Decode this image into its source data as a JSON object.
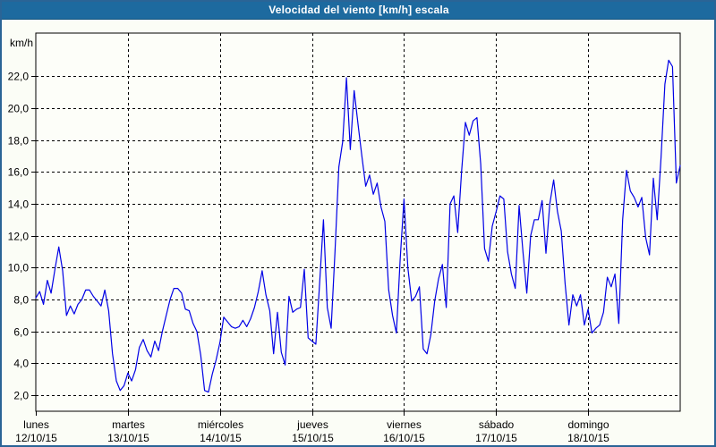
{
  "header": {
    "title": "Velocidad del viento [km/h] escala"
  },
  "colors": {
    "titlebar_bg": "#1d6a9f",
    "title_text": "#ffffff",
    "window_border": "#2a6496",
    "panel_bg": "#fbfdf6",
    "plot_bg": "#fdfef9",
    "grid": "#000000",
    "line": "#0000e6"
  },
  "chart_data": {
    "type": "line",
    "title": "Velocidad del viento [km/h] escala",
    "xlabel": "",
    "ylabel": "km/h",
    "grid": true,
    "legend": "none",
    "ylim": [
      1.0,
      24.7
    ],
    "sampling": "hourly, 24 points per day plus closing point",
    "line_color": "#0000e6",
    "y_ticks": [
      {
        "value": 22,
        "label": "22,0"
      },
      {
        "value": 20,
        "label": "20,0"
      },
      {
        "value": 18,
        "label": "18,0"
      },
      {
        "value": 16,
        "label": "16,0"
      },
      {
        "value": 14,
        "label": "14,0"
      },
      {
        "value": 12,
        "label": "12,0"
      },
      {
        "value": 10,
        "label": "10,0"
      },
      {
        "value": 8,
        "label": "8,0"
      },
      {
        "value": 6,
        "label": "6,0"
      },
      {
        "value": 4,
        "label": "4,0"
      },
      {
        "value": 2,
        "label": "2,0"
      }
    ],
    "days": [
      {
        "name": "lunes",
        "date": "12/10/15"
      },
      {
        "name": "martes",
        "date": "13/10/15"
      },
      {
        "name": "miércoles",
        "date": "14/10/15"
      },
      {
        "name": "jueves",
        "date": "15/10/15"
      },
      {
        "name": "viernes",
        "date": "16/10/15"
      },
      {
        "name": "sábado",
        "date": "17/10/15"
      },
      {
        "name": "domingo",
        "date": "18/10/15"
      }
    ],
    "values": [
      8.1,
      8.5,
      7.7,
      9.2,
      8.4,
      9.9,
      11.3,
      9.8,
      7.0,
      7.6,
      7.1,
      7.7,
      8.0,
      8.6,
      8.6,
      8.2,
      7.9,
      7.6,
      8.6,
      7.3,
      4.6,
      2.9,
      2.3,
      2.6,
      3.4,
      2.9,
      3.6,
      5.0,
      5.5,
      4.8,
      4.4,
      5.4,
      4.8,
      6.0,
      7.0,
      8.0,
      8.7,
      8.7,
      8.4,
      7.4,
      7.3,
      6.5,
      6.0,
      4.5,
      2.3,
      2.2,
      3.3,
      4.2,
      5.3,
      6.9,
      6.6,
      6.3,
      6.2,
      6.3,
      6.7,
      6.3,
      6.8,
      7.5,
      8.5,
      9.8,
      8.3,
      7.3,
      4.6,
      7.2,
      4.7,
      3.9,
      8.2,
      7.2,
      7.4,
      7.5,
      9.9,
      5.6,
      5.4,
      5.2,
      9.0,
      13.0,
      7.5,
      6.2,
      11.0,
      16.3,
      17.9,
      21.9,
      17.4,
      21.1,
      19.0,
      17.0,
      15.1,
      15.8,
      14.6,
      15.3,
      13.8,
      12.9,
      8.6,
      7.0,
      5.9,
      10.5,
      14.3,
      10.0,
      7.9,
      8.2,
      8.8,
      4.9,
      4.6,
      5.8,
      7.9,
      9.3,
      10.2,
      7.5,
      14.0,
      14.5,
      12.2,
      16.0,
      19.1,
      18.3,
      19.2,
      19.4,
      16.5,
      11.2,
      10.4,
      12.6,
      13.5,
      14.5,
      14.3,
      11.0,
      9.6,
      8.7,
      13.9,
      11.0,
      8.4,
      12.0,
      13.0,
      13.0,
      14.2,
      10.9,
      14.0,
      15.5,
      13.5,
      12.3,
      9.0,
      6.4,
      8.3,
      7.6,
      8.3,
      6.4,
      7.4,
      5.9,
      6.2,
      6.4,
      7.2,
      9.4,
      8.8,
      9.6,
      6.5,
      13.0,
      16.1,
      14.8,
      14.4,
      13.8,
      14.4,
      11.9,
      10.8,
      15.6,
      13.0,
      16.9,
      21.5,
      23.0,
      22.6,
      15.3,
      16.4
    ]
  }
}
